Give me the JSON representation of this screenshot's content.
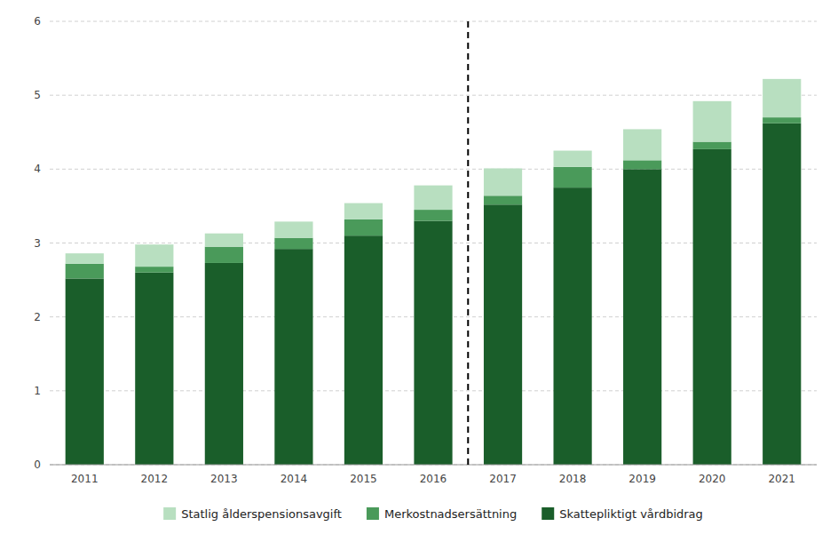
{
  "chart_data": {
    "type": "bar",
    "stacked": true,
    "categories": [
      "2011",
      "2012",
      "2013",
      "2014",
      "2015",
      "2016",
      "2017",
      "2018",
      "2019",
      "2020",
      "2021"
    ],
    "series": [
      {
        "name": "Skattepliktigt vårdbidrag",
        "color": "#1a5e2a",
        "values": [
          2.52,
          2.6,
          2.73,
          2.92,
          3.1,
          3.3,
          3.52,
          3.75,
          4.0,
          4.27,
          4.62
        ]
      },
      {
        "name": "Merkostnadsersättning",
        "color": "#4a9a5a",
        "values": [
          0.2,
          0.08,
          0.22,
          0.15,
          0.22,
          0.15,
          0.12,
          0.28,
          0.12,
          0.1,
          0.08
        ]
      },
      {
        "name": "Statlig ålderspensionsavgift",
        "color": "#b8dfc0",
        "values": [
          0.14,
          0.3,
          0.18,
          0.22,
          0.22,
          0.33,
          0.37,
          0.22,
          0.42,
          0.55,
          0.52
        ]
      }
    ],
    "ylim": [
      0,
      6
    ],
    "yticks": [
      0,
      1,
      2,
      3,
      4,
      5,
      6
    ],
    "grid": true,
    "legend": "bottom",
    "annotations": [
      {
        "type": "vline",
        "between": [
          "2016",
          "2017"
        ],
        "line_style": "dashed",
        "color": "#000000"
      }
    ]
  }
}
